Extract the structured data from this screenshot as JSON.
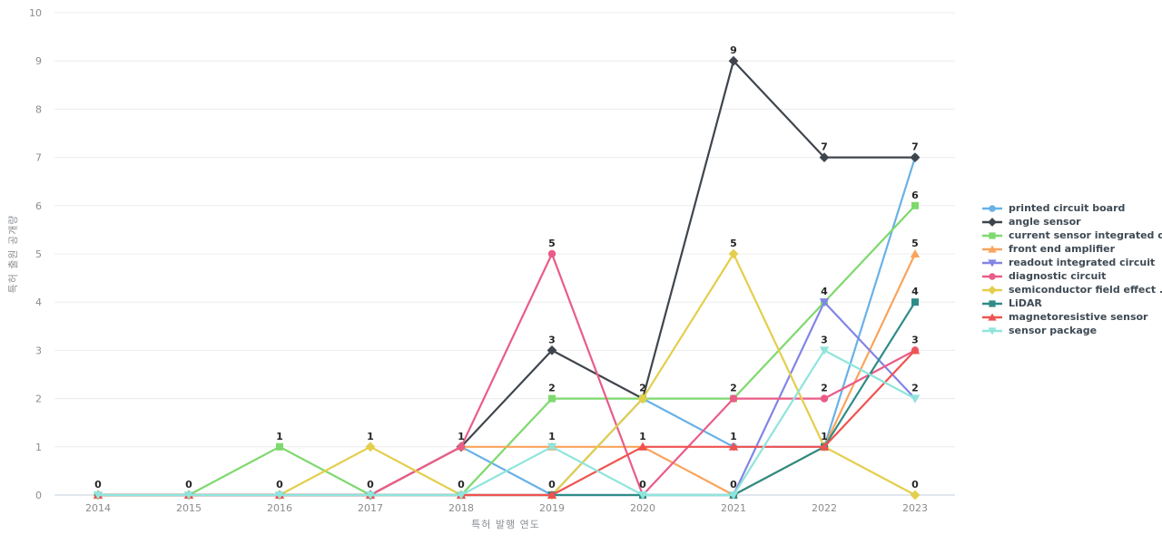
{
  "chart_data": {
    "type": "line",
    "title": "",
    "xlabel": "특허 발행 연도",
    "ylabel": "특허 출원 공개량",
    "categories": [
      "2014",
      "2015",
      "2016",
      "2017",
      "2018",
      "2019",
      "2020",
      "2021",
      "2022",
      "2023"
    ],
    "ylim": [
      0,
      10
    ],
    "yticks": [
      0,
      1,
      2,
      3,
      4,
      5,
      6,
      7,
      8,
      9,
      10
    ],
    "grid": true,
    "legend_position": "right",
    "value_labels": "distinct-per-x",
    "series": [
      {
        "name": "printed circuit board",
        "color": "#68B1E7",
        "marker": "circle",
        "values": [
          0,
          0,
          0,
          0,
          1,
          0,
          2,
          1,
          1,
          7
        ]
      },
      {
        "name": "angle sensor",
        "color": "#3F454C",
        "marker": "diamond",
        "values": [
          0,
          0,
          0,
          0,
          1,
          3,
          2,
          9,
          7,
          7
        ]
      },
      {
        "name": "current sensor integrated c...",
        "color": "#7ED96E",
        "marker": "square",
        "values": [
          0,
          0,
          1,
          0,
          0,
          2,
          2,
          2,
          4,
          6
        ]
      },
      {
        "name": "front end amplifier",
        "color": "#F9A45C",
        "marker": "triangle-up",
        "values": [
          0,
          0,
          0,
          0,
          1,
          1,
          1,
          0,
          1,
          5
        ]
      },
      {
        "name": "readout integrated circuit",
        "color": "#8285E6",
        "marker": "triangle-down",
        "values": [
          0,
          0,
          0,
          0,
          0,
          0,
          0,
          0,
          4,
          2
        ]
      },
      {
        "name": "diagnostic circuit",
        "color": "#EA5C88",
        "marker": "circle",
        "values": [
          0,
          0,
          0,
          0,
          1,
          5,
          0,
          2,
          2,
          3
        ]
      },
      {
        "name": "semiconductor field effect ...",
        "color": "#E4CE4D",
        "marker": "diamond",
        "values": [
          0,
          0,
          0,
          1,
          0,
          0,
          2,
          5,
          1,
          0
        ]
      },
      {
        "name": "LiDAR",
        "color": "#2F8C86",
        "marker": "square",
        "values": [
          0,
          0,
          0,
          0,
          0,
          0,
          0,
          0,
          1,
          4
        ]
      },
      {
        "name": "magnetoresistive sensor",
        "color": "#EF5350",
        "marker": "triangle-up",
        "values": [
          0,
          0,
          0,
          0,
          0,
          0,
          1,
          1,
          1,
          3
        ]
      },
      {
        "name": "sensor package",
        "color": "#8FE5DC",
        "marker": "triangle-down",
        "values": [
          0,
          0,
          0,
          0,
          0,
          1,
          0,
          0,
          3,
          2
        ]
      }
    ],
    "style": {
      "grid_color": "#ececec",
      "zero_line_color": "#c3cfdc",
      "tick_color": "#8c8c8c",
      "value_label_color": "#262626",
      "legend_text_color": "#3e4a54",
      "background": "#ffffff"
    }
  }
}
